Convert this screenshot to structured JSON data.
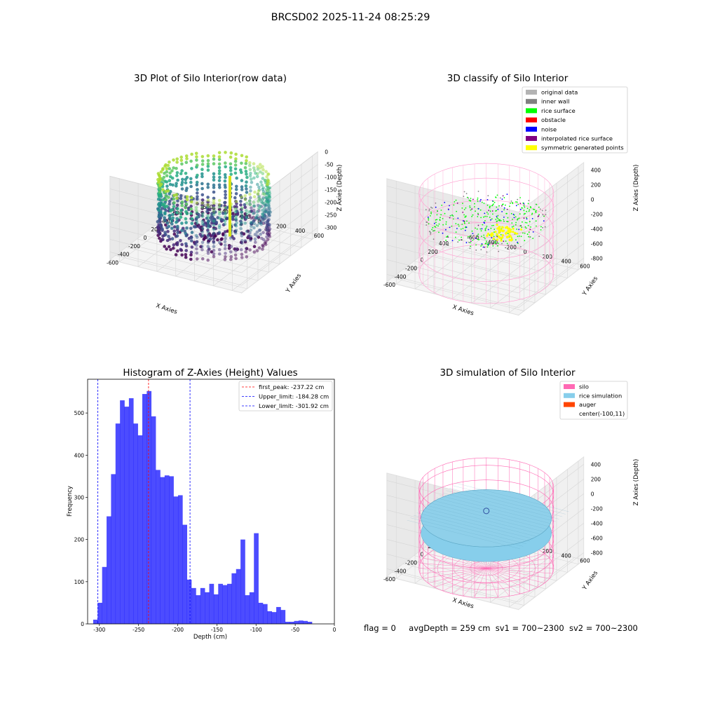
{
  "page": {
    "suptitle": "BRCSD02 2025-11-24 08:25:29"
  },
  "panels": {
    "raw": {
      "title": "3D Plot of Silo Interior(row data)",
      "xlabel": "X Axies",
      "ylabel": "Y Axies",
      "zlabel": "Z Axies (Depth)",
      "xticks": [
        "-600",
        "-400",
        "-200",
        "0",
        "200",
        "400",
        "600"
      ],
      "yticks": [
        "-600",
        "-400",
        "-200",
        "0",
        "200",
        "400",
        "600"
      ],
      "zticks": [
        "0",
        "-50",
        "-100",
        "-150",
        "-200",
        "-250",
        "-300"
      ]
    },
    "classify": {
      "title": "3D classify of Silo Interior",
      "xlabel": "X Axies",
      "ylabel": "Y Axies",
      "zlabel": "Z Axies (Depth)",
      "xticks": [
        "-600",
        "-400",
        "-200",
        "0",
        "200",
        "400"
      ],
      "yticks": [
        "-600",
        "-400",
        "-200",
        "0",
        "200",
        "400",
        "600"
      ],
      "zticks": [
        "400",
        "200",
        "0",
        "-200",
        "-400",
        "-600",
        "-800"
      ],
      "legend": [
        {
          "label": "original data",
          "color": "#b3b3b3"
        },
        {
          "label": "inner wall",
          "color": "#808080"
        },
        {
          "label": "rice surface",
          "color": "#00ff00"
        },
        {
          "label": "obstacle",
          "color": "#ff0000"
        },
        {
          "label": "noise",
          "color": "#0000ff"
        },
        {
          "label": "interpolated rice surface",
          "color": "#800080"
        },
        {
          "label": "symmetric generated points",
          "color": "#ffff00"
        }
      ]
    },
    "simulation": {
      "title": "3D simulation of Silo Interior",
      "xlabel": "X Axies",
      "ylabel": "Y Axies",
      "zlabel": "Z Axies (Depth)",
      "xticks": [
        "-600",
        "-400",
        "-200",
        "0",
        "200",
        "400"
      ],
      "yticks": [
        "-600",
        "-400",
        "-200",
        "0",
        "200",
        "400",
        "600"
      ],
      "zticks": [
        "400",
        "200",
        "0",
        "-200",
        "-400",
        "-600",
        "-800"
      ],
      "legend": [
        {
          "label": "silo",
          "color": "#ff69b4"
        },
        {
          "label": "rice simulation",
          "color": "#87ceeb"
        },
        {
          "label": "auger",
          "color": "#ff4500"
        },
        {
          "label": "center(-100,11)",
          "color": ""
        }
      ]
    }
  },
  "chart_data": {
    "type": "bar",
    "title": "Histogram of Z-Axies (Height) Values",
    "xlabel": "Depth (cm)",
    "ylabel": "Frequency",
    "xlim": [
      -315,
      0
    ],
    "ylim": [
      0,
      580
    ],
    "xticks": [
      -300,
      -250,
      -200,
      -150,
      -100,
      -50,
      0
    ],
    "yticks": [
      0,
      100,
      200,
      300,
      400,
      500
    ],
    "bar_color": "#0000ff",
    "bin_width": 5.7,
    "bin_start": -307.9,
    "values": [
      10,
      50,
      135,
      255,
      355,
      475,
      530,
      515,
      535,
      475,
      447,
      545,
      552,
      492,
      365,
      348,
      352,
      350,
      302,
      305,
      235,
      105,
      85,
      68,
      85,
      75,
      95,
      70,
      95,
      92,
      95,
      120,
      130,
      200,
      68,
      75,
      215,
      50,
      47,
      30,
      28,
      40,
      33,
      5,
      5,
      7,
      8,
      7,
      5
    ],
    "vlines": [
      {
        "label": "first_peak: -237.22 cm",
        "x": -237.22,
        "color": "#ff0000"
      },
      {
        "label": "Upper_limit: -184.28 cm",
        "x": -184.28,
        "color": "#0000ff"
      },
      {
        "label": "Lower_limit: -301.92 cm",
        "x": -301.92,
        "color": "#0000ff"
      }
    ]
  },
  "footer": {
    "flag": "flag = 0",
    "avg": "avgDepth = 259 cm",
    "sv1": "sv1 = 700~2300",
    "sv2": "sv2 = 700~2300"
  }
}
